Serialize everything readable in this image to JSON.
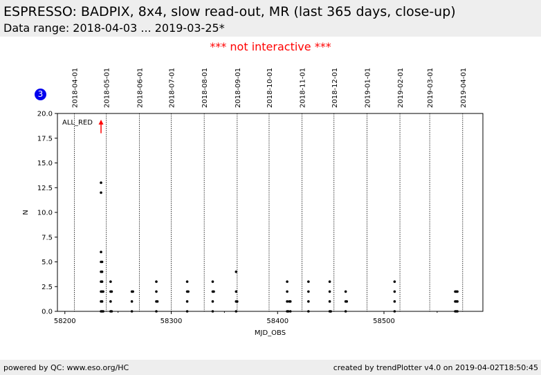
{
  "header": {
    "title": "ESPRESSO: BADPIX, 8x4, slow read-out, MR (last 365 days, close-up)",
    "subtitle": "Data range: 2018-04-03 ... 2019-03-25*"
  },
  "notice": "*** not interactive ***",
  "badge": "3",
  "footer": {
    "left": "powered by QC: www.eso.org/HC",
    "right": "created by trendPlotter v4.0 on 2019-04-02T18:50:45"
  },
  "colors": {
    "header_bg": "#eeeeee",
    "notice": "#ff0000",
    "badge": "#0000ee",
    "points": "#000000",
    "arrow": "#ff0000"
  },
  "chart_data": {
    "type": "scatter",
    "xlabel": "MJD_OBS",
    "ylabel": "N",
    "xlim": [
      58193,
      58593
    ],
    "ylim": [
      0,
      20
    ],
    "xticks": [
      58200,
      58300,
      58400,
      58500
    ],
    "yticks": [
      0.0,
      2.5,
      5.0,
      7.5,
      10.0,
      12.5,
      15.0,
      17.5,
      20.0
    ],
    "ytick_labels": [
      "0.0",
      "2.5",
      "5.0",
      "7.5",
      "10.0",
      "12.5",
      "15.0",
      "17.5",
      "20.0"
    ],
    "grid": false,
    "date_lines": [
      {
        "label": "2018-04-01",
        "mjd": 58209
      },
      {
        "label": "2018-05-01",
        "mjd": 58239
      },
      {
        "label": "2018-06-01",
        "mjd": 58270
      },
      {
        "label": "2018-07-01",
        "mjd": 58300
      },
      {
        "label": "2018-08-01",
        "mjd": 58331
      },
      {
        "label": "2018-09-01",
        "mjd": 58362
      },
      {
        "label": "2018-10-01",
        "mjd": 58392
      },
      {
        "label": "2018-11-01",
        "mjd": 58423
      },
      {
        "label": "2018-12-01",
        "mjd": 58453
      },
      {
        "label": "2019-01-01",
        "mjd": 58484
      },
      {
        "label": "2019-02-01",
        "mjd": 58515
      },
      {
        "label": "2019-03-01",
        "mjd": 58543
      },
      {
        "label": "2019-04-01",
        "mjd": 58574
      }
    ],
    "annotation": {
      "text": "ALL_RED",
      "x": 58234,
      "y": 19.3,
      "arrow_from_y": 18.0,
      "placement": "top-left"
    },
    "points": [
      {
        "x": 58234,
        "y": 0
      },
      {
        "x": 58234,
        "y": 1
      },
      {
        "x": 58234,
        "y": 2
      },
      {
        "x": 58234,
        "y": 3
      },
      {
        "x": 58234,
        "y": 4
      },
      {
        "x": 58234,
        "y": 5
      },
      {
        "x": 58234,
        "y": 6
      },
      {
        "x": 58234,
        "y": 12
      },
      {
        "x": 58234,
        "y": 13
      },
      {
        "x": 58235,
        "y": 0
      },
      {
        "x": 58235,
        "y": 1
      },
      {
        "x": 58235,
        "y": 2
      },
      {
        "x": 58235,
        "y": 3
      },
      {
        "x": 58235,
        "y": 4
      },
      {
        "x": 58235,
        "y": 5
      },
      {
        "x": 58236,
        "y": 0
      },
      {
        "x": 58236,
        "y": 2
      },
      {
        "x": 58243,
        "y": 0
      },
      {
        "x": 58243,
        "y": 1
      },
      {
        "x": 58243,
        "y": 2
      },
      {
        "x": 58243,
        "y": 3
      },
      {
        "x": 58244,
        "y": 0
      },
      {
        "x": 58244,
        "y": 2
      },
      {
        "x": 58263,
        "y": 0
      },
      {
        "x": 58263,
        "y": 1
      },
      {
        "x": 58263,
        "y": 2
      },
      {
        "x": 58264,
        "y": 2
      },
      {
        "x": 58286,
        "y": 0
      },
      {
        "x": 58286,
        "y": 1
      },
      {
        "x": 58286,
        "y": 2
      },
      {
        "x": 58286,
        "y": 3
      },
      {
        "x": 58287,
        "y": 1
      },
      {
        "x": 58315,
        "y": 0
      },
      {
        "x": 58315,
        "y": 1
      },
      {
        "x": 58315,
        "y": 2
      },
      {
        "x": 58315,
        "y": 3
      },
      {
        "x": 58316,
        "y": 2
      },
      {
        "x": 58339,
        "y": 0
      },
      {
        "x": 58339,
        "y": 1
      },
      {
        "x": 58339,
        "y": 2
      },
      {
        "x": 58339,
        "y": 3
      },
      {
        "x": 58340,
        "y": 2
      },
      {
        "x": 58361,
        "y": 0
      },
      {
        "x": 58361,
        "y": 1
      },
      {
        "x": 58361,
        "y": 2
      },
      {
        "x": 58361,
        "y": 4
      },
      {
        "x": 58362,
        "y": 1
      },
      {
        "x": 58409,
        "y": 0
      },
      {
        "x": 58409,
        "y": 1
      },
      {
        "x": 58409,
        "y": 2
      },
      {
        "x": 58409,
        "y": 3
      },
      {
        "x": 58410,
        "y": 0
      },
      {
        "x": 58411,
        "y": 1
      },
      {
        "x": 58412,
        "y": 0
      },
      {
        "x": 58412,
        "y": 1
      },
      {
        "x": 58429,
        "y": 0
      },
      {
        "x": 58429,
        "y": 1
      },
      {
        "x": 58429,
        "y": 2
      },
      {
        "x": 58429,
        "y": 3
      },
      {
        "x": 58449,
        "y": 0
      },
      {
        "x": 58449,
        "y": 1
      },
      {
        "x": 58449,
        "y": 2
      },
      {
        "x": 58449,
        "y": 3
      },
      {
        "x": 58450,
        "y": 0
      },
      {
        "x": 58464,
        "y": 0
      },
      {
        "x": 58464,
        "y": 1
      },
      {
        "x": 58464,
        "y": 2
      },
      {
        "x": 58465,
        "y": 1
      },
      {
        "x": 58510,
        "y": 0
      },
      {
        "x": 58510,
        "y": 1
      },
      {
        "x": 58510,
        "y": 2
      },
      {
        "x": 58510,
        "y": 3
      },
      {
        "x": 58567,
        "y": 0
      },
      {
        "x": 58567,
        "y": 1
      },
      {
        "x": 58567,
        "y": 2
      },
      {
        "x": 58568,
        "y": 0
      },
      {
        "x": 58568,
        "y": 1
      },
      {
        "x": 58568,
        "y": 2
      },
      {
        "x": 58569,
        "y": 0
      },
      {
        "x": 58569,
        "y": 1
      },
      {
        "x": 58569,
        "y": 2
      }
    ]
  }
}
